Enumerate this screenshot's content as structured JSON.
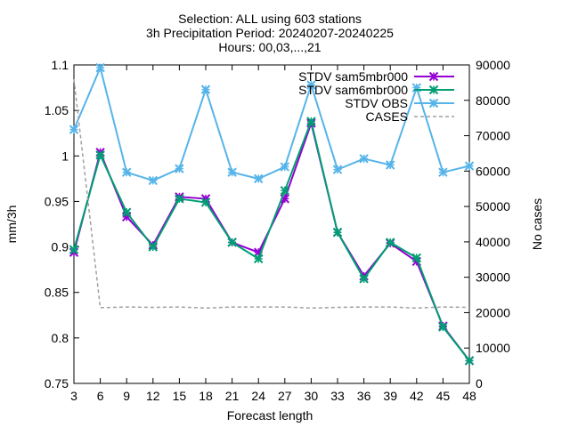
{
  "chart_data": {
    "type": "line",
    "title_lines": [
      "Selection: ALL using   603 stations",
      "3h Precipitation   Period: 20240207-20240225",
      "Hours: 00,03,...,21"
    ],
    "xlabel": "Forecast length",
    "ylabel": "mm/3h",
    "y2label": "No cases",
    "x": [
      3,
      6,
      9,
      12,
      15,
      18,
      21,
      24,
      27,
      30,
      33,
      36,
      39,
      42,
      45,
      48
    ],
    "xlim": [
      3,
      48
    ],
    "ylim": [
      0.75,
      1.1
    ],
    "y2lim": [
      0,
      90000
    ],
    "yticks": [
      "0.75",
      "0.8",
      "0.85",
      "0.9",
      "0.95",
      "1",
      "1.05",
      "1.1"
    ],
    "y2ticks": [
      "0",
      "10000",
      "20000",
      "30000",
      "40000",
      "50000",
      "60000",
      "70000",
      "80000",
      "90000"
    ],
    "grid": false,
    "legend_position": "top-right",
    "series": [
      {
        "name": "STDV sam5mbr000",
        "axis": "y",
        "color": "#9400d3",
        "dash": "solid",
        "marker": "x",
        "values": [
          0.894,
          1.004,
          0.933,
          0.902,
          0.955,
          0.953,
          0.905,
          0.894,
          0.953,
          1.036,
          0.916,
          0.868,
          0.904,
          0.884,
          0.813,
          0.775
        ]
      },
      {
        "name": "STDV sam6mbr000",
        "axis": "y",
        "color": "#009e73",
        "dash": "solid",
        "marker": "x",
        "values": [
          0.897,
          1.001,
          0.938,
          0.9,
          0.953,
          0.949,
          0.905,
          0.887,
          0.962,
          1.038,
          0.916,
          0.865,
          0.905,
          0.888,
          0.812,
          0.775
        ]
      },
      {
        "name": "STDV OBS",
        "axis": "y",
        "color": "#56b4e9",
        "dash": "solid",
        "marker": "x",
        "values": [
          1.029,
          1.097,
          0.982,
          0.973,
          0.986,
          1.073,
          0.982,
          0.975,
          0.988,
          1.078,
          0.985,
          0.997,
          0.99,
          1.075,
          0.982,
          0.989
        ]
      },
      {
        "name": "CASES",
        "axis": "y2",
        "color": "#a0a0a0",
        "dash": "dashed",
        "marker": "none",
        "values": [
          86000,
          21400,
          21600,
          21500,
          21600,
          21300,
          21600,
          21600,
          21600,
          21300,
          21500,
          21600,
          21600,
          21300,
          21600,
          21500
        ]
      }
    ]
  }
}
